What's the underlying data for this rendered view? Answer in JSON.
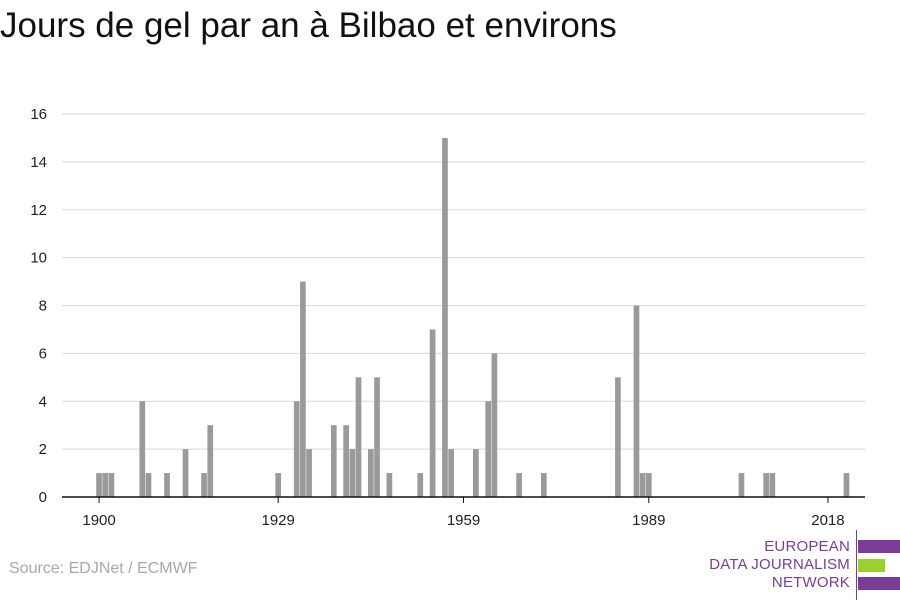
{
  "title": "Jours de gel par an à Bilbao et environs",
  "source": "Source: EDJNet / ECMWF",
  "logo": {
    "lines": [
      "EUROPEAN",
      "DATA JOURNALISM",
      "NETWORK"
    ],
    "colors": [
      "#7b3c96",
      "#9bd02f",
      "#7b3c96"
    ]
  },
  "colors": {
    "bar": "#9a9a9a",
    "grid": "#d9d9d9",
    "axis": "#111111"
  },
  "chart_data": {
    "type": "bar",
    "title": "Jours de gel par an à Bilbao et environs",
    "xlabel": "",
    "ylabel": "",
    "ylim": [
      0,
      16
    ],
    "yticks": [
      0,
      2,
      4,
      6,
      8,
      10,
      12,
      14,
      16
    ],
    "xticks": [
      1900,
      1929,
      1959,
      1989,
      2018
    ],
    "xlim": [
      1894,
      2024
    ],
    "grid": true,
    "x": [
      1900,
      1901,
      1902,
      1907,
      1908,
      1911,
      1914,
      1917,
      1918,
      1929,
      1932,
      1933,
      1934,
      1938,
      1940,
      1941,
      1942,
      1944,
      1945,
      1947,
      1952,
      1954,
      1956,
      1957,
      1961,
      1963,
      1964,
      1968,
      1972,
      1984,
      1987,
      1988,
      1989,
      2004,
      2008,
      2009,
      2021
    ],
    "values": [
      1,
      1,
      1,
      4,
      1,
      1,
      2,
      1,
      3,
      1,
      4,
      9,
      2,
      3,
      3,
      2,
      5,
      2,
      5,
      1,
      1,
      7,
      15,
      2,
      2,
      4,
      6,
      1,
      1,
      5,
      8,
      1,
      1,
      1,
      1,
      1,
      1
    ]
  }
}
